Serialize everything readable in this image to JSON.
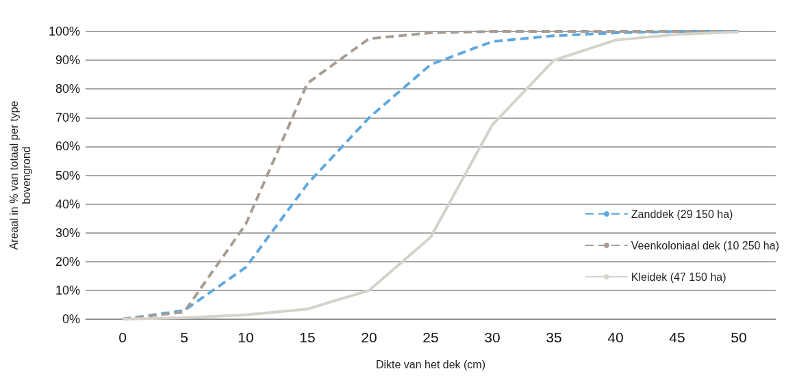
{
  "chart_data": {
    "type": "line",
    "xlabel": "Dikte van het dek (cm)",
    "ylabel": "Areaal in % van totaal per type\nbovengrond",
    "x": [
      0,
      5,
      10,
      15,
      20,
      25,
      30,
      35,
      40,
      45,
      50
    ],
    "series": [
      {
        "name": "Zanddek (29 150 ha)",
        "color": "#5fa8e0",
        "line_style": "dashed",
        "values": [
          0,
          3,
          18,
          47,
          70,
          88.5,
          96.5,
          98.5,
          99.5,
          100,
          100
        ]
      },
      {
        "name": "Veenkoloniaal dek (10 250 ha)",
        "color": "#a79d93",
        "line_style": "dashed",
        "values": [
          0,
          2.5,
          33,
          82,
          97.5,
          99.5,
          100,
          100,
          100,
          100,
          100
        ]
      },
      {
        "name": "Kleidek (47 150 ha)",
        "color": "#d4d2cb",
        "line_style": "solid",
        "values": [
          0,
          0.5,
          1.5,
          3.5,
          10,
          28.5,
          67.5,
          90,
          97,
          99,
          99.8
        ]
      }
    ],
    "xlim": [
      -3,
      53
    ],
    "xticks": [
      0,
      5,
      10,
      15,
      20,
      25,
      30,
      35,
      40,
      45,
      50
    ],
    "ylim": [
      0,
      100
    ],
    "yticks": [
      {
        "value": 0,
        "label": "0%"
      },
      {
        "value": 10,
        "label": "10%"
      },
      {
        "value": 20,
        "label": "20%"
      },
      {
        "value": 30,
        "label": "30%"
      },
      {
        "value": 40,
        "label": "40%"
      },
      {
        "value": 50,
        "label": "50%"
      },
      {
        "value": 60,
        "label": "60%"
      },
      {
        "value": 70,
        "label": "70%"
      },
      {
        "value": 80,
        "label": "80%"
      },
      {
        "value": 90,
        "label": "90%"
      },
      {
        "value": 100,
        "label": "100%"
      }
    ],
    "grid": "y",
    "legend": "right",
    "marker": "none"
  }
}
